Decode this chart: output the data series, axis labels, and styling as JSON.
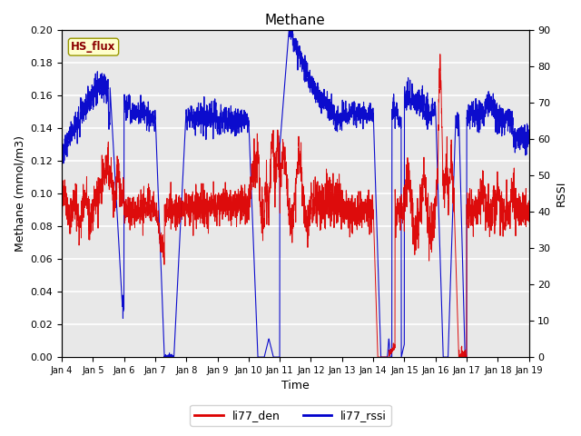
{
  "title": "Methane",
  "xlabel": "Time",
  "ylabel_left": "Methane (mmol/m3)",
  "ylabel_right": "RSSI",
  "ylim_left": [
    0.0,
    0.2
  ],
  "ylim_right": [
    0,
    90
  ],
  "yticks_left": [
    0.0,
    0.02,
    0.04,
    0.06,
    0.08,
    0.1,
    0.12,
    0.14,
    0.16,
    0.18,
    0.2
  ],
  "yticks_right": [
    0,
    10,
    20,
    30,
    40,
    50,
    60,
    70,
    80,
    90
  ],
  "background_color": "#e8e8e8",
  "grid_color": "#ffffff",
  "line_color_red": "#dd0000",
  "line_color_blue": "#0000cc",
  "legend_labels": [
    "li77_den",
    "li77_rssi"
  ],
  "annotation_text": "HS_flux",
  "annotation_bg": "#ffffcc",
  "annotation_border": "#cccc00",
  "x_tick_days": [
    4,
    5,
    6,
    7,
    8,
    9,
    10,
    11,
    12,
    13,
    14,
    15,
    16,
    17,
    18,
    19
  ],
  "title_fontsize": 11,
  "label_fontsize": 9,
  "tick_fontsize": 8
}
